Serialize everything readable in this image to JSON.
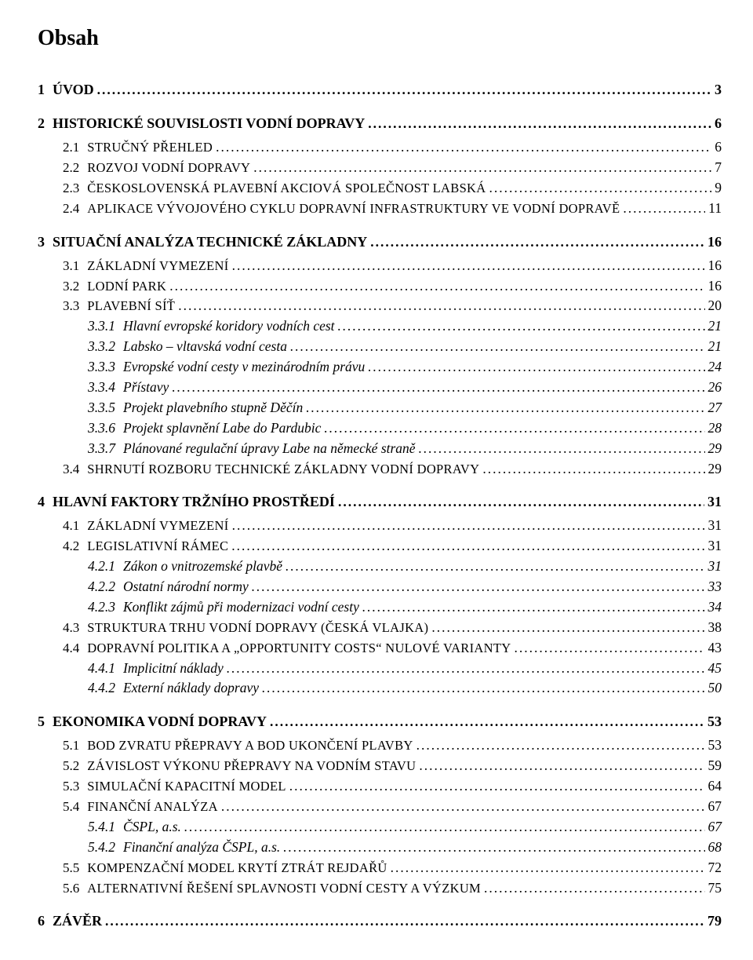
{
  "title": "Obsah",
  "dot_fill": "........................................................................................................................................................................................................",
  "entries": [
    {
      "level": 1,
      "num": "1",
      "label": "ÚVOD",
      "page": "3"
    },
    {
      "level": 1,
      "num": "2",
      "label": "HISTORICKÉ SOUVISLOSTI VODNÍ DOPRAVY",
      "page": "6"
    },
    {
      "level": 2,
      "num": "2.1",
      "label": "Stručný přehled",
      "page": "6"
    },
    {
      "level": 2,
      "num": "2.2",
      "label": "Rozvoj vodní dopravy",
      "page": "7"
    },
    {
      "level": 2,
      "num": "2.3",
      "label": "Československá plavební akciová společnost labská",
      "page": "9"
    },
    {
      "level": 2,
      "num": "2.4",
      "label": "Aplikace vývojového cyklu dopravní infrastruktury ve vodní dopravě",
      "page": "11"
    },
    {
      "level": 1,
      "num": "3",
      "label": "SITUAČNÍ ANALÝZA TECHNICKÉ ZÁKLADNY",
      "page": "16"
    },
    {
      "level": 2,
      "num": "3.1",
      "label": "Základní vymezení",
      "page": "16"
    },
    {
      "level": 2,
      "num": "3.2",
      "label": "Lodní park",
      "page": "16"
    },
    {
      "level": 2,
      "num": "3.3",
      "label": "Plavební síť",
      "page": "20"
    },
    {
      "level": 3,
      "num": "3.3.1",
      "label": "Hlavní evropské koridory vodních cest",
      "page": "21"
    },
    {
      "level": 3,
      "num": "3.3.2",
      "label": "Labsko – vltavská vodní cesta",
      "page": "21"
    },
    {
      "level": 3,
      "num": "3.3.3",
      "label": "Evropské vodní cesty v mezinárodním právu",
      "page": "24"
    },
    {
      "level": 3,
      "num": "3.3.4",
      "label": "Přístavy",
      "page": "26"
    },
    {
      "level": 3,
      "num": "3.3.5",
      "label": "Projekt plavebního stupně Děčín",
      "page": "27"
    },
    {
      "level": 3,
      "num": "3.3.6",
      "label": "Projekt splavnění Labe do Pardubic",
      "page": "28"
    },
    {
      "level": 3,
      "num": "3.3.7",
      "label": "Plánované regulační úpravy Labe na německé straně",
      "page": "29"
    },
    {
      "level": 2,
      "num": "3.4",
      "label": "Shrnutí rozboru technické základny vodní dopravy",
      "page": "29"
    },
    {
      "level": 1,
      "num": "4",
      "label": "HLAVNÍ FAKTORY TRŽNÍHO PROSTŘEDÍ",
      "page": "31"
    },
    {
      "level": 2,
      "num": "4.1",
      "label": "Základní vymezení",
      "page": "31"
    },
    {
      "level": 2,
      "num": "4.2",
      "label": "Legislativní rámec",
      "page": "31"
    },
    {
      "level": 3,
      "num": "4.2.1",
      "label": "Zákon o vnitrozemské plavbě",
      "page": "31"
    },
    {
      "level": 3,
      "num": "4.2.2",
      "label": "Ostatní národní normy",
      "page": "33"
    },
    {
      "level": 3,
      "num": "4.2.3",
      "label": "Konflikt zájmů při modernizaci vodní cesty",
      "page": "34"
    },
    {
      "level": 2,
      "num": "4.3",
      "label": "Struktura trhu vodní dopravy (česká vlajka)",
      "page": "38"
    },
    {
      "level": 2,
      "num": "4.4",
      "label": "Dopravní politika a „opportunity costs“ nulové varianty",
      "page": "43"
    },
    {
      "level": 3,
      "num": "4.4.1",
      "label": "Implicitní náklady",
      "page": "45"
    },
    {
      "level": 3,
      "num": "4.4.2",
      "label": "Externí náklady dopravy",
      "page": "50"
    },
    {
      "level": 1,
      "num": "5",
      "label": "EKONOMIKA VODNÍ DOPRAVY",
      "page": "53"
    },
    {
      "level": 2,
      "num": "5.1",
      "label": "Bod zvratu přepravy a bod ukončení plavby",
      "page": "53"
    },
    {
      "level": 2,
      "num": "5.2",
      "label": "Závislost výkonu přepravy na vodním stavu",
      "page": "59"
    },
    {
      "level": 2,
      "num": "5.3",
      "label": "Simulační kapacitní model",
      "page": "64"
    },
    {
      "level": 2,
      "num": "5.4",
      "label": "Finanční analýza",
      "page": "67"
    },
    {
      "level": 3,
      "num": "5.4.1",
      "label": "ČSPL, a.s.",
      "page": "67"
    },
    {
      "level": 3,
      "num": "5.4.2",
      "label": "Finanční analýza ČSPL, a.s.",
      "page": "68"
    },
    {
      "level": 2,
      "num": "5.5",
      "label": "Kompenzační model krytí ztrát rejdařů",
      "page": "72"
    },
    {
      "level": 2,
      "num": "5.6",
      "label": "Alternativní řešení splavnosti vodní cesty a výzkum",
      "page": "75"
    },
    {
      "level": 1,
      "num": "6",
      "label": "ZÁVĚR",
      "page": "79"
    }
  ]
}
